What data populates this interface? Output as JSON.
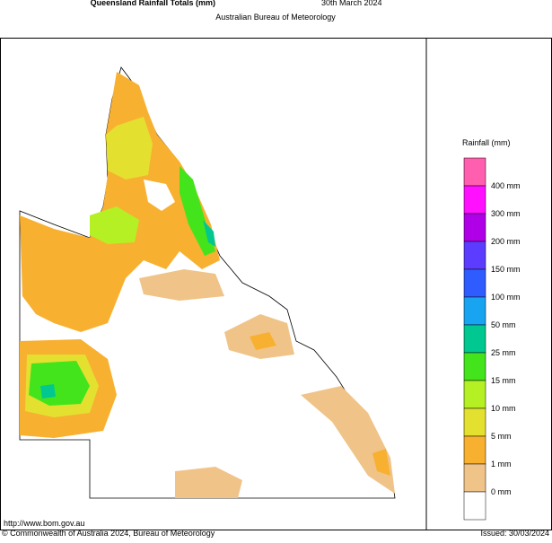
{
  "header": {
    "title": "Queensland Rainfall Totals (mm)",
    "date": "30th March 2024",
    "subtitle": "Australian Bureau of Meteorology"
  },
  "legend": {
    "title": "Rainfall (mm)",
    "colors": [
      "#ff5fae",
      "#ff10ff",
      "#b000e8",
      "#5c3cff",
      "#2f5cff",
      "#18a4f0",
      "#00c890",
      "#44e41c",
      "#b4f024",
      "#e4e030",
      "#f8b030",
      "#f0c488",
      "#ffffff"
    ],
    "labels": [
      "400 mm",
      "300 mm",
      "200 mm",
      "150 mm",
      "100 mm",
      "50 mm",
      "25 mm",
      "15 mm",
      "10 mm",
      "5 mm",
      "1 mm",
      "0 mm"
    ]
  },
  "footer": {
    "url": "http://www.bom.gov.au",
    "copyright": "© Commonwealth of Australia 2024, Bureau of Meteorology",
    "issued": "Issued: 30/03/2024"
  }
}
